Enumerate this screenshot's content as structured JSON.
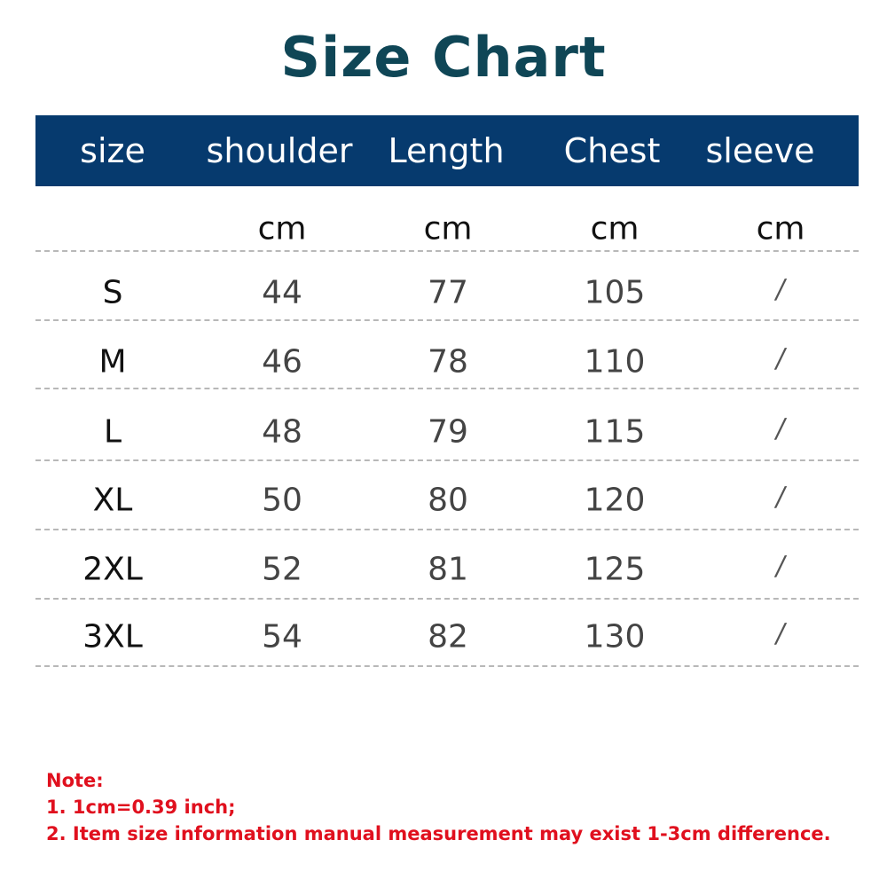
{
  "title": "Size Chart",
  "colors": {
    "header_bg": "#063a6e",
    "title": "#0f4656",
    "note": "#e0101e"
  },
  "columns": [
    "size",
    "shoulder",
    "Length",
    "Chest",
    "sleeve"
  ],
  "units": [
    "",
    "cm",
    "cm",
    "cm",
    "cm"
  ],
  "rows": [
    [
      "S",
      "44",
      "77",
      "105",
      "/"
    ],
    [
      "M",
      "46",
      "78",
      "110",
      "/"
    ],
    [
      "L",
      "48",
      "79",
      "115",
      "/"
    ],
    [
      "XL",
      "50",
      "80",
      "120",
      "/"
    ],
    [
      "2XL",
      "52",
      "81",
      "125",
      "/"
    ],
    [
      "3XL",
      "54",
      "82",
      "130",
      "/"
    ]
  ],
  "notes": {
    "heading": "Note:",
    "items": [
      "1. 1cm=0.39 inch;",
      "2. Item size information manual measurement may exist 1-3cm difference."
    ]
  }
}
